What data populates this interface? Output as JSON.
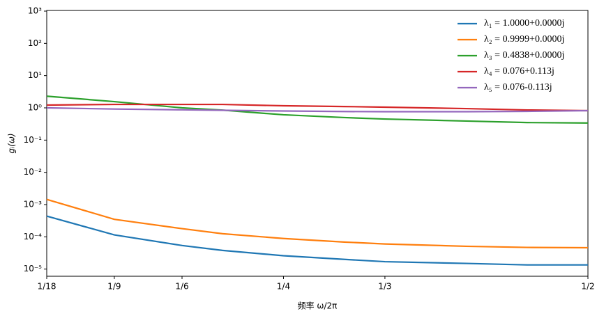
{
  "chart_data": {
    "type": "line",
    "y_label": "gᵢ(ω)",
    "x_label": "频率 ω/2π",
    "log_y": true,
    "legend": "upper right",
    "xlim": [
      0.0556,
      0.5
    ],
    "xticks": [
      {
        "value": 0.0556,
        "label": "1/18"
      },
      {
        "value": 0.1111,
        "label": "1/9"
      },
      {
        "value": 0.1667,
        "label": "1/6"
      },
      {
        "value": 0.25,
        "label": "1/4"
      },
      {
        "value": 0.3333,
        "label": "1/3"
      },
      {
        "value": 0.5,
        "label": "1/2"
      }
    ],
    "ylim": [
      6e-06,
      1050
    ],
    "yticks": [
      {
        "value": 1e-05,
        "label": "10⁻⁵"
      },
      {
        "value": 0.0001,
        "label": "10⁻⁴"
      },
      {
        "value": 0.001,
        "label": "10⁻³"
      },
      {
        "value": 0.01,
        "label": "10⁻²"
      },
      {
        "value": 0.1,
        "label": "10⁻¹"
      },
      {
        "value": 1,
        "label": "10⁰"
      },
      {
        "value": 10,
        "label": "10¹"
      },
      {
        "value": 100,
        "label": "10²"
      },
      {
        "value": 1000,
        "label": "10³"
      }
    ],
    "x": [
      0.0556,
      0.1111,
      0.1667,
      0.2,
      0.25,
      0.3,
      0.3333,
      0.4,
      0.45,
      0.5
    ],
    "series": [
      {
        "name": "λ₁ = 1.0000+0.0000j",
        "color": "#1f77b4",
        "values": [
          0.00044,
          0.000115,
          5.4e-05,
          3.8e-05,
          2.6e-05,
          2e-05,
          1.7e-05,
          1.5e-05,
          1.35e-05,
          1.35e-05
        ]
      },
      {
        "name": "λ₂ = 0.9999+0.0000j",
        "color": "#ff7f0e",
        "values": [
          0.00145,
          0.00035,
          0.00018,
          0.000125,
          8.9e-05,
          6.9e-05,
          6e-05,
          5.1e-05,
          4.7e-05,
          4.6e-05
        ]
      },
      {
        "name": "λ₃ = 0.4838+0.0000j",
        "color": "#2ca02c",
        "values": [
          2.3,
          1.56,
          1.0,
          0.85,
          0.61,
          0.5,
          0.45,
          0.39,
          0.35,
          0.34
        ]
      },
      {
        "name": "λ₄ = 0.076+0.113j",
        "color": "#d62728",
        "values": [
          1.22,
          1.28,
          1.28,
          1.28,
          1.16,
          1.1,
          1.05,
          0.95,
          0.86,
          0.82
        ]
      },
      {
        "name": "λ₅ = 0.076-0.113j",
        "color": "#9467bd",
        "values": [
          1.0,
          0.92,
          0.87,
          0.84,
          0.8,
          0.77,
          0.76,
          0.76,
          0.78,
          0.82
        ]
      }
    ]
  }
}
